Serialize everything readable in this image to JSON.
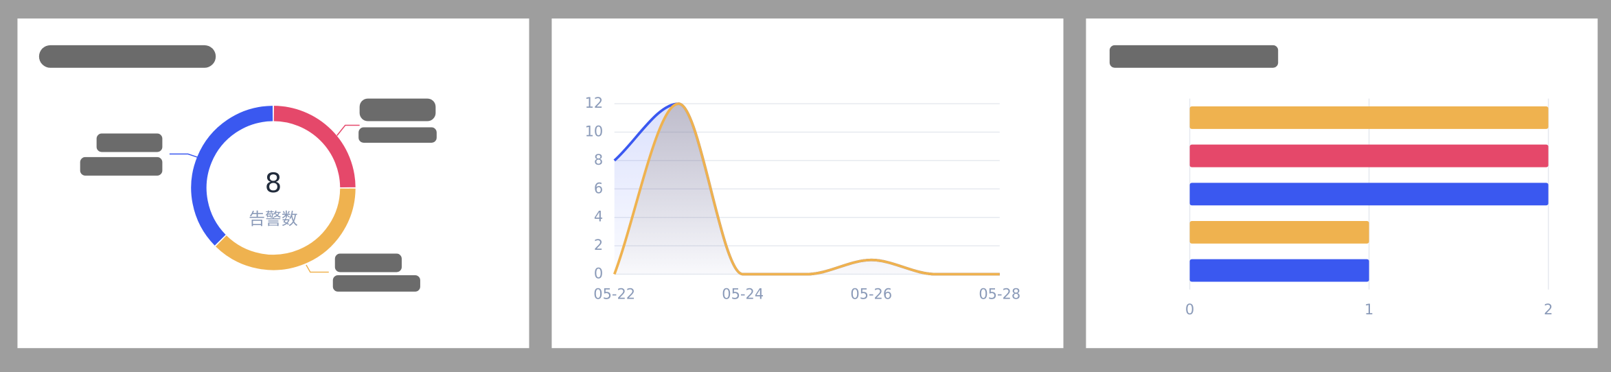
{
  "chart_data": [
    {
      "type": "pie",
      "values": [
        2,
        3,
        3
      ],
      "colors": [
        "#e5486a",
        "#efb24f",
        "#3a58f0"
      ],
      "center_value": 8,
      "center_label": "告警数"
    },
    {
      "type": "line",
      "categories": [
        "05-22",
        null,
        "05-24",
        null,
        "05-26",
        null,
        "05-28"
      ],
      "series": [
        {
          "color": "#3a58f0",
          "values": [
            8,
            12,
            0,
            0,
            1,
            0,
            0
          ]
        },
        {
          "color": "#efb24f",
          "values": [
            0,
            12,
            0,
            0,
            1,
            0,
            0
          ]
        }
      ],
      "ylim": [
        0,
        12
      ],
      "yticks": [
        0,
        2,
        4,
        6,
        8,
        10,
        12
      ],
      "grid": true
    },
    {
      "type": "bar",
      "orientation": "horizontal",
      "values": [
        2,
        2,
        2,
        1,
        1
      ],
      "colors": [
        "#efb24f",
        "#e5486a",
        "#3a58f0",
        "#efb24f",
        "#3a58f0"
      ],
      "xlim": [
        0,
        2
      ],
      "xticks": [
        0,
        1,
        2
      ],
      "grid": true
    }
  ]
}
